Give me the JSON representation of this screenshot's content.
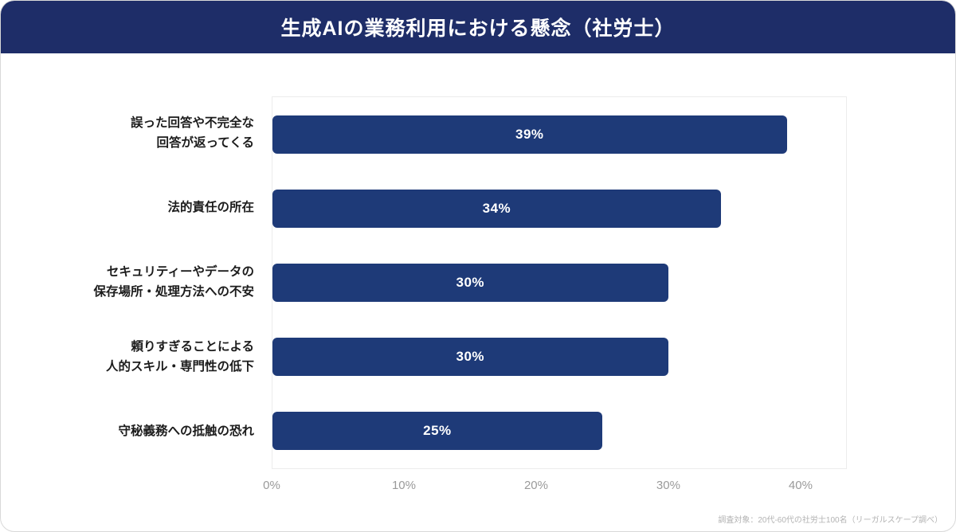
{
  "header": {
    "title": "生成AIの業務利用における懸念（社労士）"
  },
  "colors": {
    "header_bg": "#1e2d68",
    "bar_color": "#1e3a78",
    "value_label_color": "#ffffff",
    "tick_label_color": "#9a9a9a"
  },
  "chart_data": {
    "type": "bar",
    "orientation": "horizontal",
    "title": "生成AIの業務利用における懸念（社労士）",
    "categories": [
      "誤った回答や不完全な\n回答が返ってくる",
      "法的責任の所在",
      "セキュリティーやデータの\n保存場所・処理方法への不安",
      "頼りすぎることによる\n人的スキル・専門性の低下",
      "守秘義務への抵触の恐れ"
    ],
    "values": [
      39,
      34,
      30,
      30,
      25
    ],
    "value_labels": [
      "39%",
      "34%",
      "30%",
      "30%",
      "25%"
    ],
    "xlabel": "",
    "ylabel": "",
    "xlim": [
      0,
      43.5
    ],
    "x_ticks": [
      "0%",
      "10%",
      "20%",
      "30%",
      "40%"
    ],
    "x_tick_values": [
      0,
      10,
      20,
      30,
      40
    ],
    "grid": false,
    "legend": false,
    "bar_color": "#1e3a78"
  },
  "footnote": "調査対象：20代-60代の社労士100名（リーガルスケープ調べ）"
}
